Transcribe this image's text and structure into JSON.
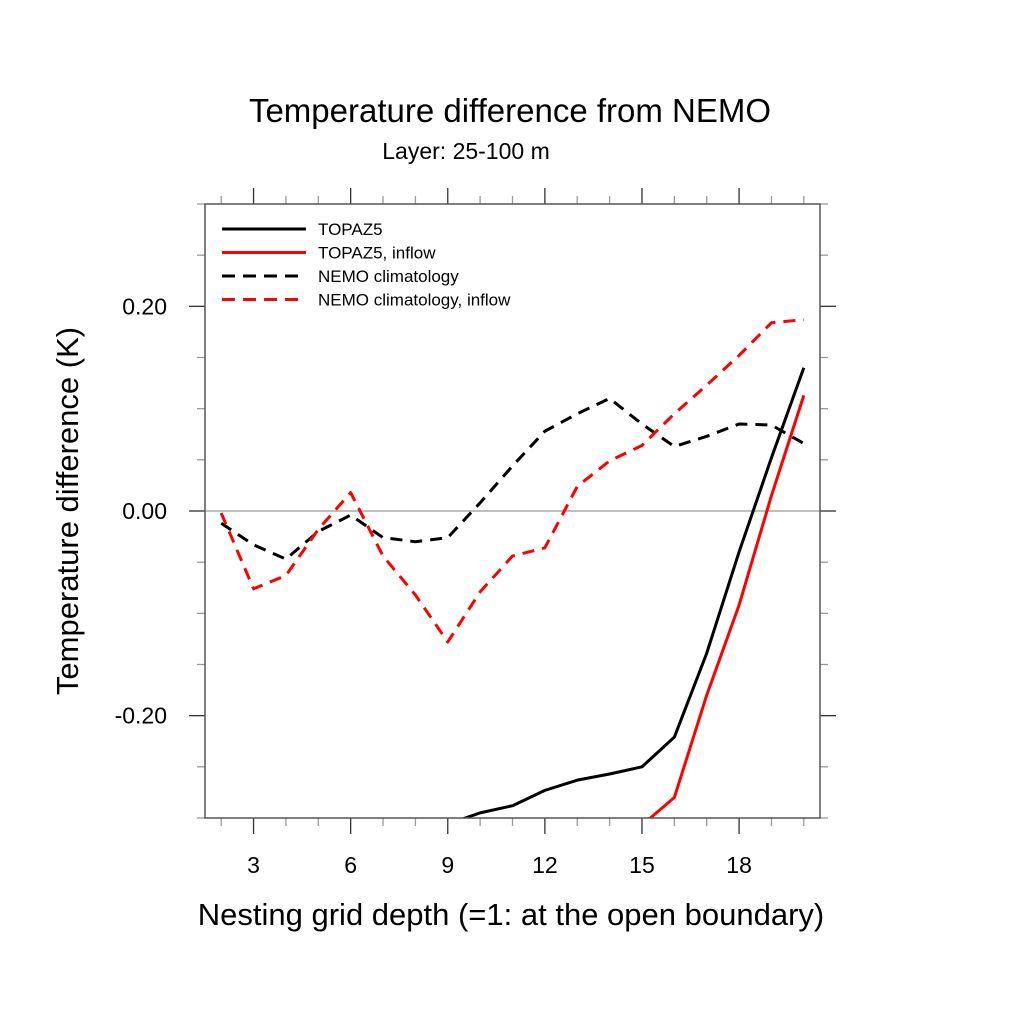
{
  "chart_data": {
    "type": "line",
    "title": "Temperature difference from NEMO",
    "subtitle": "Layer: 25-100 m",
    "xlabel": "Nesting grid depth (=1: at the open boundary)",
    "ylabel": "Temperature difference (K)",
    "xlim": [
      1.5,
      20.5
    ],
    "ylim": [
      -0.3,
      0.3
    ],
    "x_major_ticks": [
      3,
      6,
      9,
      12,
      15,
      18
    ],
    "x_tick_labels": [
      "3",
      "6",
      "9",
      "12",
      "15",
      "18"
    ],
    "x_minor_step": 1,
    "y_major_ticks": [
      -0.2,
      0.0,
      0.2
    ],
    "y_tick_labels": [
      "-0.20",
      "0.00",
      "0.20"
    ],
    "y_minor_step": 0.05,
    "reference_line": {
      "y": 0.0,
      "color": "#aaaaaa"
    },
    "grid": false,
    "legend_position": "top-left",
    "x": [
      2,
      3,
      4,
      5,
      6,
      7,
      8,
      9,
      10,
      11,
      12,
      13,
      14,
      15,
      16,
      17,
      18,
      19,
      20
    ],
    "series": [
      {
        "name": "TOPAZ5",
        "color": "#000000",
        "dash": "solid",
        "values": [
          null,
          null,
          null,
          null,
          null,
          null,
          null,
          -0.306,
          -0.295,
          -0.288,
          -0.273,
          -0.263,
          -0.257,
          -0.25,
          -0.221,
          -0.139,
          -0.04,
          0.052,
          0.14
        ]
      },
      {
        "name": "TOPAZ5, inflow",
        "color": "#ff0000",
        "dash": "solid",
        "values": [
          null,
          null,
          null,
          null,
          null,
          null,
          null,
          null,
          null,
          null,
          null,
          null,
          null,
          -0.307,
          -0.28,
          -0.18,
          -0.092,
          0.015,
          0.113
        ]
      },
      {
        "name": "NEMO climatology",
        "color": "#000000",
        "dash": "dashed",
        "values": [
          -0.012,
          -0.033,
          -0.047,
          -0.02,
          -0.004,
          -0.026,
          -0.03,
          -0.026,
          0.008,
          0.044,
          0.078,
          0.095,
          0.11,
          0.085,
          0.063,
          0.073,
          0.085,
          0.084,
          0.066
        ]
      },
      {
        "name": "NEMO climatology, inflow",
        "color": "#ff0000",
        "dash": "dashed",
        "values": [
          -0.002,
          -0.076,
          -0.063,
          -0.018,
          0.018,
          -0.044,
          -0.082,
          -0.128,
          -0.079,
          -0.044,
          -0.036,
          0.024,
          0.049,
          0.064,
          0.095,
          0.123,
          0.152,
          0.184,
          0.187
        ]
      }
    ]
  }
}
